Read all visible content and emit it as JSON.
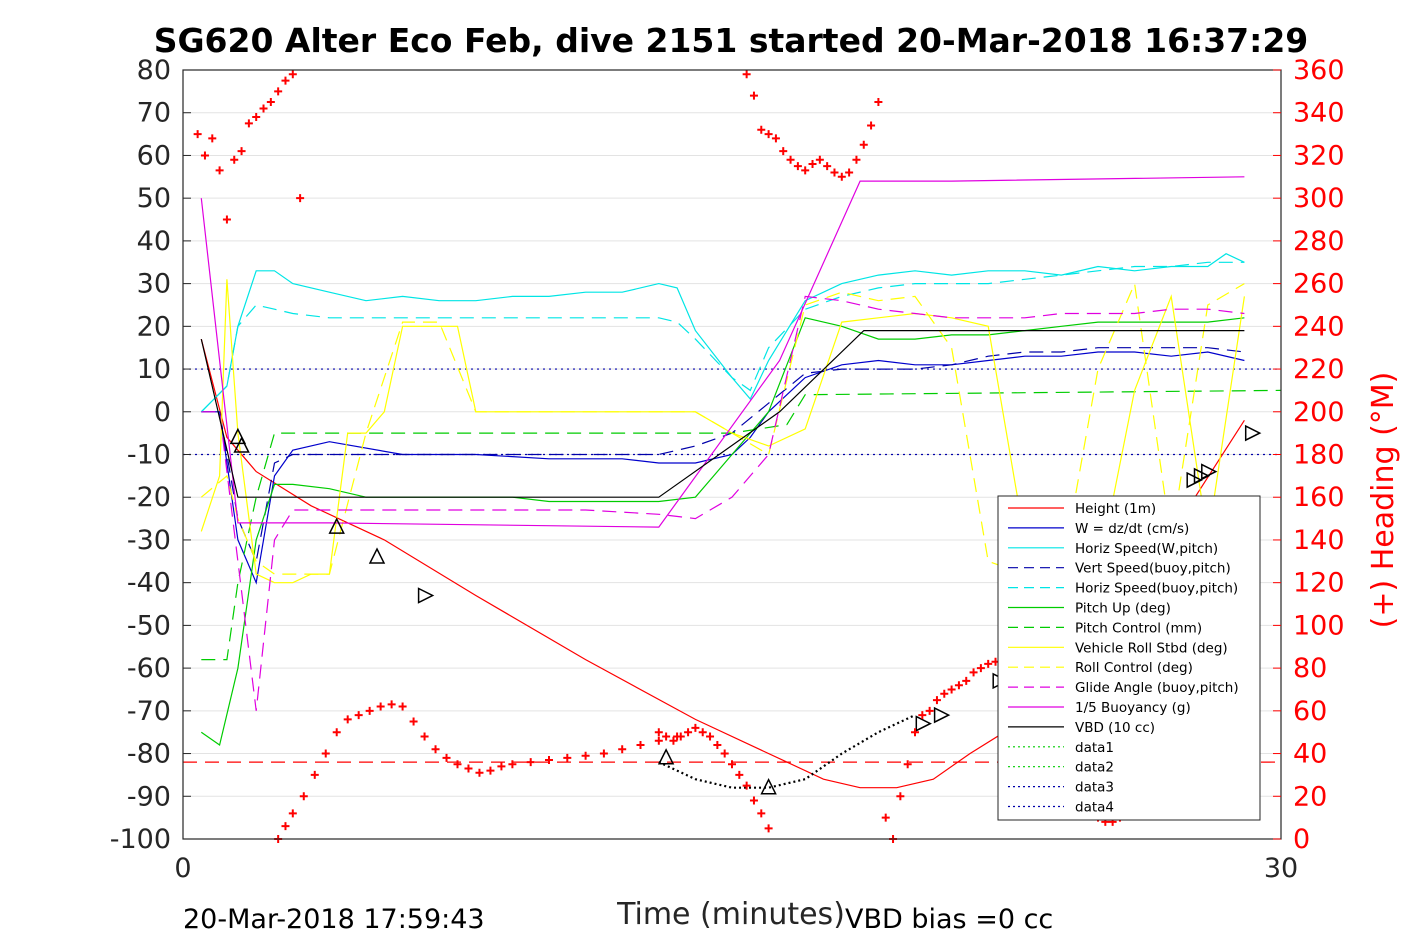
{
  "chart_data": {
    "type": "line",
    "title": "SG620 Alter Eco Feb, dive 2151 started 20-Mar-2018 16:37:29",
    "xlabel": "Time (minutes)",
    "ylabel": "",
    "ylabel_right": "(+) Heading (°M)",
    "xlim": [
      0,
      30
    ],
    "ylim": [
      -100,
      80
    ],
    "ylim_right": [
      0,
      360
    ],
    "xticks": [
      "0",
      "30"
    ],
    "yticks": [
      "80",
      "70",
      "60",
      "50",
      "40",
      "30",
      "20",
      "10",
      "0",
      "-10",
      "-20",
      "-30",
      "-40",
      "-50",
      "-60",
      "-70",
      "-80",
      "-90",
      "-100"
    ],
    "yticks_right": [
      "360",
      "340",
      "320",
      "300",
      "280",
      "260",
      "240",
      "220",
      "200",
      "180",
      "160",
      "140",
      "120",
      "100",
      "80",
      "60",
      "40",
      "20",
      "0"
    ],
    "grid": "horizontal",
    "legend_position": "bottom-right",
    "footer_left": "20-Mar-2018 17:59:43",
    "footer_right": "VBD bias =0 cc",
    "series": [
      {
        "name": "Height (1m)",
        "color": "#ff0000",
        "style": "solid",
        "x": [
          0.5,
          1.2,
          1.5,
          2.0,
          3.5,
          5.5,
          8,
          11,
          14,
          16.5,
          17.5,
          18.5,
          19.5,
          20.5,
          21.5,
          23,
          24.5,
          25.5,
          26.5,
          27.5,
          29
        ],
        "y": [
          17,
          -6,
          -9,
          -14,
          -22,
          -30,
          -43,
          -58,
          -72,
          -82,
          -86,
          -88,
          -88,
          -86,
          -80,
          -72,
          -63,
          -52,
          -38,
          -22,
          -2
        ]
      },
      {
        "name": "W = dz/dt (cm/s)",
        "color": "#0000cc",
        "style": "solid",
        "x": [
          0.5,
          1.0,
          1.5,
          2.0,
          2.5,
          3,
          4,
          6,
          8,
          10,
          11,
          12,
          13,
          14,
          15,
          15.5,
          16,
          17,
          18,
          19,
          20,
          21,
          22,
          23,
          24,
          25,
          26,
          27,
          28,
          29
        ],
        "y": [
          0,
          0,
          -30,
          -40,
          -15,
          -9,
          -7,
          -10,
          -10,
          -11,
          -11,
          -11,
          -12,
          -12,
          -10,
          -6,
          0,
          8,
          11,
          12,
          11,
          11,
          12,
          13,
          13,
          14,
          14,
          13,
          14,
          12
        ]
      },
      {
        "name": "Horiz Speed(W,pitch)",
        "color": "#00e5e5",
        "style": "solid",
        "x": [
          0.5,
          1.2,
          1.5,
          2.0,
          2.5,
          3,
          4,
          5,
          6,
          7,
          8,
          9,
          10,
          11,
          12,
          13,
          13.5,
          14,
          15,
          15.5,
          16,
          17,
          18,
          19,
          20,
          21,
          22,
          23,
          24,
          25,
          26,
          27,
          28,
          28.5,
          29
        ],
        "y": [
          0,
          6,
          20,
          33,
          33,
          30,
          28,
          26,
          27,
          26,
          26,
          27,
          27,
          28,
          28,
          30,
          29,
          19,
          8,
          3,
          12,
          26,
          30,
          32,
          33,
          32,
          33,
          33,
          32,
          34,
          33,
          34,
          34,
          37,
          35
        ]
      },
      {
        "name": "Vert Speed(buoy,pitch)",
        "color": "#0000aa",
        "style": "dashed",
        "x": [
          0.5,
          1.0,
          1.5,
          2.0,
          2.5,
          3,
          5,
          7,
          9,
          11,
          13,
          14,
          15,
          16,
          17,
          18,
          19,
          20,
          21,
          22,
          23,
          24,
          25,
          26,
          27,
          28,
          29
        ],
        "y": [
          0,
          0,
          -25,
          -35,
          -12,
          -10,
          -10,
          -10,
          -10,
          -10,
          -10,
          -8,
          -5,
          2,
          9,
          10,
          10,
          10,
          11,
          13,
          14,
          14,
          15,
          15,
          15,
          15,
          14
        ]
      },
      {
        "name": "Horiz Speed(buoy,pitch)",
        "color": "#00e5e5",
        "style": "dashed",
        "x": [
          0.5,
          1.2,
          1.5,
          2.0,
          2.5,
          3,
          4,
          5,
          6,
          7,
          8,
          9,
          10,
          11,
          12,
          13,
          13.5,
          14,
          15,
          15.5,
          16,
          17,
          18,
          19,
          20,
          21,
          22,
          23,
          24,
          25,
          26,
          27,
          28,
          29
        ],
        "y": [
          0,
          6,
          20,
          25,
          24,
          23,
          22,
          22,
          22,
          22,
          22,
          22,
          22,
          22,
          22,
          22,
          21,
          17,
          8,
          5,
          15,
          24,
          27,
          29,
          30,
          30,
          30,
          31,
          32,
          33,
          34,
          34,
          35,
          35
        ]
      },
      {
        "name": "Pitch Up (deg)",
        "color": "#00cc00",
        "style": "solid",
        "x": [
          0.5,
          1.0,
          1.5,
          2.0,
          2.5,
          3,
          4,
          5,
          6,
          7,
          8,
          9,
          10,
          11,
          12,
          13,
          14,
          14.5,
          15,
          15.5,
          16,
          17,
          18,
          19,
          20,
          21,
          22,
          23,
          24,
          25,
          26,
          27,
          28,
          29
        ],
        "y": [
          -75,
          -78,
          -60,
          -30,
          -17,
          -17,
          -18,
          -20,
          -20,
          -20,
          -20,
          -20,
          -21,
          -21,
          -21,
          -21,
          -20,
          -15,
          -10,
          -5,
          0,
          22,
          20,
          17,
          17,
          18,
          18,
          19,
          20,
          21,
          21,
          21,
          21,
          22
        ]
      },
      {
        "name": "Pitch Control (mm)",
        "color": "#00cc00",
        "style": "dashed",
        "x": [
          0.5,
          1.2,
          1.5,
          2.0,
          2.5,
          3,
          15,
          16.5,
          17,
          30
        ],
        "y": [
          -58,
          -58,
          -40,
          -20,
          -5,
          -5,
          -5,
          -3,
          4,
          5
        ]
      },
      {
        "name": "Vehicle Roll Stbd (deg)",
        "color": "#ffff00",
        "style": "solid",
        "x": [
          0.5,
          1.0,
          1.2,
          1.5,
          2.0,
          2.5,
          3,
          3.5,
          4,
          4.5,
          5,
          5.5,
          6,
          6.5,
          7,
          7.5,
          8,
          9,
          10,
          11,
          12,
          13,
          14,
          15,
          16,
          17,
          18,
          19,
          20,
          21,
          22,
          23,
          24,
          25,
          26,
          27,
          28,
          29
        ],
        "y": [
          -28,
          -15,
          31,
          -5,
          -38,
          -40,
          -40,
          -38,
          -38,
          -5,
          -5,
          0,
          20,
          20,
          20,
          20,
          0,
          0,
          0,
          0,
          0,
          0,
          0,
          -5,
          -8,
          -4,
          21,
          22,
          23,
          22,
          20,
          -30,
          -40,
          -38,
          5,
          27,
          -30,
          27
        ]
      },
      {
        "name": "Roll Control (deg)",
        "color": "#ffff00",
        "style": "dashed",
        "x": [
          0.5,
          1.2,
          1.5,
          2.0,
          2.5,
          3,
          3.5,
          4,
          5,
          6,
          7,
          8,
          9,
          10,
          11,
          12,
          13,
          14,
          15,
          16,
          17,
          18,
          19,
          20,
          21,
          22,
          23,
          24,
          25,
          26,
          27,
          28,
          29
        ],
        "y": [
          -20,
          -15,
          -25,
          -35,
          -38,
          -38,
          -38,
          -38,
          -5,
          21,
          21,
          0,
          0,
          0,
          0,
          0,
          0,
          0,
          -5,
          -10,
          25,
          28,
          26,
          27,
          15,
          -35,
          -38,
          -38,
          10,
          30,
          -30,
          25,
          30
        ]
      },
      {
        "name": "Glide Angle (buoy,pitch)",
        "color": "#e000e0",
        "style": "dashed",
        "x": [
          0.5,
          1.0,
          1.5,
          2.0,
          2.5,
          3,
          5,
          7,
          9,
          11,
          13,
          14,
          15,
          16,
          17,
          18,
          19,
          20,
          21,
          22,
          23,
          24,
          25,
          26,
          27,
          28,
          29
        ],
        "y": [
          0,
          0,
          -35,
          -70,
          -30,
          -23,
          -23,
          -23,
          -23,
          -23,
          -24,
          -25,
          -20,
          -10,
          27,
          26,
          24,
          23,
          22,
          22,
          22,
          23,
          23,
          23,
          24,
          24,
          23
        ]
      },
      {
        "name": "1/5 Buoyancy (g)",
        "color": "#e000e0",
        "style": "solid",
        "x": [
          0.5,
          1.5,
          2.0,
          4,
          13,
          16.3,
          18.5,
          21,
          29
        ],
        "y": [
          50,
          -26,
          -26,
          -26,
          -27,
          12,
          54,
          54,
          55
        ]
      },
      {
        "name": "VBD (10 cc)",
        "color": "#000000",
        "style": "solid",
        "x": [
          0.5,
          1.5,
          13,
          16.3,
          18.6,
          29
        ],
        "y": [
          17,
          -20,
          -20,
          0,
          19,
          19
        ]
      },
      {
        "name": "data1",
        "color": "#00cc00",
        "style": "dotted",
        "x": [],
        "y": []
      },
      {
        "name": "data2",
        "color": "#00cc00",
        "style": "dotted",
        "x": [],
        "y": []
      },
      {
        "name": "data3",
        "color": "#0000aa",
        "style": "dotted",
        "x": [],
        "y": []
      },
      {
        "name": "data4",
        "color": "#0000aa",
        "style": "dotted",
        "x": [],
        "y": []
      }
    ],
    "reference_lines": [
      {
        "y": 10,
        "color": "#0000aa",
        "style": "dotted"
      },
      {
        "y": -10,
        "color": "#0000aa",
        "style": "dotted"
      },
      {
        "y": -82,
        "color": "#ff0000",
        "style": "dashed"
      }
    ],
    "markers": {
      "triangles_x": [
        1.5,
        1.6,
        4.2,
        5.3,
        6.6,
        13.2,
        16,
        20.2,
        20.7,
        22.3,
        22.5,
        23.3,
        23.5,
        24.1,
        24.3,
        25.5,
        26.3,
        27.6,
        27.8,
        28.0,
        29.2
      ],
      "triangles_y": [
        -6,
        -8,
        -27,
        -34,
        -43,
        -81,
        -88,
        -73,
        -71,
        -63,
        -62,
        -54,
        -52,
        -48,
        -47,
        -37,
        -30,
        -16,
        -15,
        -14,
        -5
      ],
      "ship_track_x": [
        13,
        14,
        15,
        16,
        17,
        18,
        19,
        20
      ],
      "ship_track_y": [
        -82,
        -86,
        -88,
        -88,
        -86,
        -80,
        -75,
        -71
      ]
    },
    "heading_points": {
      "x": [
        0.4,
        0.6,
        0.8,
        1.0,
        1.2,
        1.4,
        1.6,
        1.8,
        2.0,
        2.2,
        2.4,
        2.6,
        2.8,
        3.0,
        3.2,
        2.6,
        2.8,
        3.0,
        3.3,
        3.6,
        3.9,
        4.2,
        4.5,
        4.8,
        5.1,
        5.4,
        5.7,
        6.0,
        6.3,
        6.6,
        6.9,
        7.2,
        7.5,
        7.8,
        8.1,
        8.4,
        8.7,
        9.0,
        9.5,
        10,
        10.5,
        11,
        11.5,
        12,
        12.5,
        13,
        13.5,
        13.0,
        13.2,
        13.4,
        13.6,
        13.8,
        14.0,
        14.2,
        14.4,
        14.6,
        14.8,
        15.0,
        15.2,
        15.4,
        15.6,
        15.8,
        16.0,
        15.4,
        15.6,
        15.8,
        16.0,
        16.2,
        16.4,
        16.6,
        16.8,
        17.0,
        17.2,
        17.4,
        17.6,
        17.8,
        18.0,
        18.2,
        18.4,
        18.6,
        18.8,
        19.0,
        19.2,
        19.4,
        19.6,
        19.8,
        20.0,
        20.2,
        20.4,
        20.6,
        20.8,
        21.0,
        21.2,
        21.4,
        21.6,
        21.8,
        22.0,
        22.2,
        22.4,
        22.6,
        22.8,
        23.0,
        23.2,
        23.4,
        23.6,
        23.8,
        24.0,
        24.2,
        24.4,
        24.6,
        24.8,
        25.0,
        25.2,
        25.4,
        25.6,
        25.8,
        26.0,
        26.2
      ],
      "y": [
        330,
        320,
        328,
        313,
        290,
        318,
        322,
        335,
        338,
        342,
        345,
        350,
        355,
        358,
        300,
        0,
        6,
        12,
        20,
        30,
        40,
        50,
        56,
        58,
        60,
        62,
        63,
        62,
        55,
        48,
        42,
        38,
        35,
        33,
        31,
        32,
        34,
        35,
        36,
        37,
        38,
        39,
        40,
        42,
        44,
        46,
        48,
        50,
        48,
        46,
        48,
        50,
        52,
        50,
        48,
        44,
        40,
        35,
        30,
        25,
        18,
        12,
        5,
        358,
        348,
        332,
        330,
        328,
        322,
        318,
        315,
        313,
        316,
        318,
        315,
        312,
        310,
        312,
        318,
        325,
        334,
        345,
        10,
        0,
        20,
        35,
        50,
        58,
        60,
        65,
        68,
        70,
        72,
        74,
        78,
        80,
        82,
        83,
        84,
        86,
        88,
        85,
        80,
        60,
        50,
        40,
        35,
        25,
        20,
        15,
        12,
        10,
        8,
        8,
        10,
        12,
        15,
        20
      ]
    },
    "legend_entries": [
      "Height (1m)",
      "W = dz/dt (cm/s)",
      "Horiz Speed(W,pitch)",
      "Vert Speed(buoy,pitch)",
      "Horiz Speed(buoy,pitch)",
      "Pitch Up (deg)",
      "Pitch Control (mm)",
      "Vehicle Roll Stbd (deg)",
      "Roll Control (deg)",
      "Glide Angle (buoy,pitch)",
      "1/5 Buoyancy (g)",
      "VBD (10 cc)",
      "data1",
      "data2",
      "data3",
      "data4"
    ]
  }
}
